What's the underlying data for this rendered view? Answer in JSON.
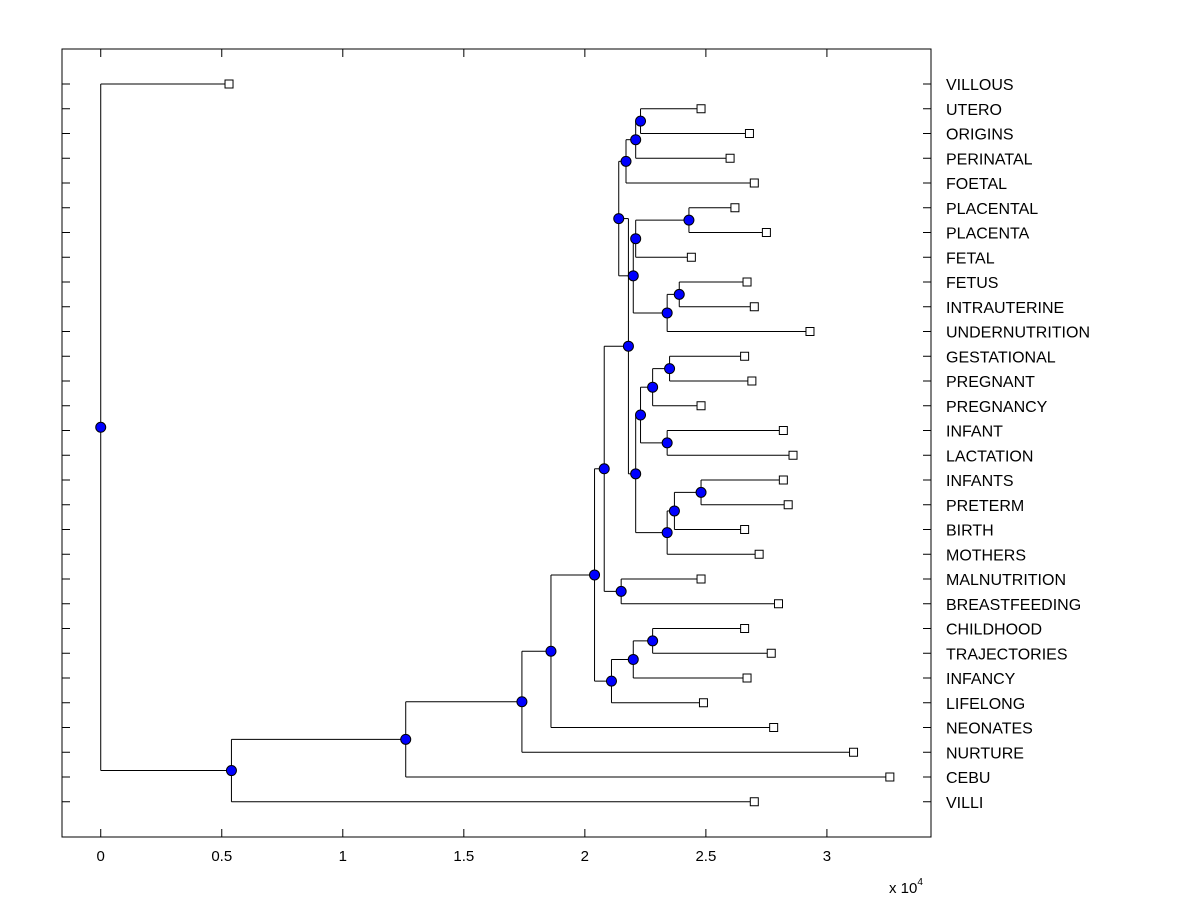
{
  "chart_data": {
    "type": "dendrogram",
    "orientation": "horizontal",
    "x_ticks": [
      0,
      0.5,
      1,
      1.5,
      2,
      2.5,
      3
    ],
    "x_tick_labels": [
      "0",
      "0.5",
      "1",
      "1.5",
      "2",
      "2.5",
      "3"
    ],
    "x_multiplier_label": "x 10",
    "x_multiplier_exponent": "4",
    "xlim": [
      -0.16,
      3.43
    ],
    "leaves": [
      {
        "label": "VILLOUS",
        "x": 0.53
      },
      {
        "label": "UTERO",
        "x": 2.48
      },
      {
        "label": "ORIGINS",
        "x": 2.68
      },
      {
        "label": "PERINATAL",
        "x": 2.6
      },
      {
        "label": "FOETAL",
        "x": 2.7
      },
      {
        "label": "PLACENTAL",
        "x": 2.62
      },
      {
        "label": "PLACENTA",
        "x": 2.75
      },
      {
        "label": "FETAL",
        "x": 2.44
      },
      {
        "label": "FETUS",
        "x": 2.67
      },
      {
        "label": "INTRAUTERINE",
        "x": 2.7
      },
      {
        "label": "UNDERNUTRITION",
        "x": 2.93
      },
      {
        "label": "GESTATIONAL",
        "x": 2.66
      },
      {
        "label": "PREGNANT",
        "x": 2.69
      },
      {
        "label": "PREGNANCY",
        "x": 2.48
      },
      {
        "label": "INFANT",
        "x": 2.82
      },
      {
        "label": "LACTATION",
        "x": 2.86
      },
      {
        "label": "INFANTS",
        "x": 2.82
      },
      {
        "label": "PRETERM",
        "x": 2.84
      },
      {
        "label": "BIRTH",
        "x": 2.66
      },
      {
        "label": "MOTHERS",
        "x": 2.72
      },
      {
        "label": "MALNUTRITION",
        "x": 2.48
      },
      {
        "label": "BREASTFEEDING",
        "x": 2.8
      },
      {
        "label": "CHILDHOOD",
        "x": 2.66
      },
      {
        "label": "TRAJECTORIES",
        "x": 2.77
      },
      {
        "label": "INFANCY",
        "x": 2.67
      },
      {
        "label": "LIFELONG",
        "x": 2.49
      },
      {
        "label": "NEONATES",
        "x": 2.78
      },
      {
        "label": "NURTURE",
        "x": 3.11
      },
      {
        "label": "CEBU",
        "x": 3.26
      },
      {
        "label": "VILLI",
        "x": 2.7
      }
    ],
    "merges": [
      {
        "id": "n1",
        "x": 2.23,
        "children": [
          "L1",
          "L2"
        ]
      },
      {
        "id": "n2",
        "x": 2.21,
        "children": [
          "n1",
          "L3"
        ]
      },
      {
        "id": "n3",
        "x": 2.17,
        "children": [
          "n2",
          "L4"
        ]
      },
      {
        "id": "n4",
        "x": 2.43,
        "children": [
          "L5",
          "L6"
        ]
      },
      {
        "id": "n5",
        "x": 2.21,
        "children": [
          "n4",
          "L7"
        ]
      },
      {
        "id": "n6",
        "x": 2.39,
        "children": [
          "L8",
          "L9"
        ]
      },
      {
        "id": "n7",
        "x": 2.34,
        "children": [
          "n6",
          "L10"
        ]
      },
      {
        "id": "n8",
        "x": 2.2,
        "children": [
          "n5",
          "n7"
        ]
      },
      {
        "id": "n9",
        "x": 2.14,
        "children": [
          "n3",
          "n8"
        ]
      },
      {
        "id": "n10",
        "x": 2.35,
        "children": [
          "L11",
          "L12"
        ]
      },
      {
        "id": "n11",
        "x": 2.28,
        "children": [
          "n10",
          "L13"
        ]
      },
      {
        "id": "n12",
        "x": 2.34,
        "children": [
          "L14",
          "L15"
        ]
      },
      {
        "id": "n13",
        "x": 2.23,
        "children": [
          "n11",
          "n12"
        ]
      },
      {
        "id": "n14",
        "x": 2.48,
        "children": [
          "L16",
          "L17"
        ]
      },
      {
        "id": "n15",
        "x": 2.37,
        "children": [
          "n14",
          "L18"
        ]
      },
      {
        "id": "n16",
        "x": 2.34,
        "children": [
          "n15",
          "L19"
        ]
      },
      {
        "id": "n17",
        "x": 2.21,
        "children": [
          "n13",
          "n16"
        ]
      },
      {
        "id": "n18",
        "x": 2.18,
        "children": [
          "n9",
          "n17"
        ]
      },
      {
        "id": "n19",
        "x": 2.15,
        "children": [
          "L20",
          "L21"
        ]
      },
      {
        "id": "n20",
        "x": 2.08,
        "children": [
          "n18",
          "n19"
        ]
      },
      {
        "id": "n21",
        "x": 2.28,
        "children": [
          "L22",
          "L23"
        ]
      },
      {
        "id": "n22",
        "x": 2.2,
        "children": [
          "n21",
          "L24"
        ]
      },
      {
        "id": "n23",
        "x": 2.11,
        "children": [
          "n22",
          "L25"
        ]
      },
      {
        "id": "n24",
        "x": 2.04,
        "children": [
          "n20",
          "n23"
        ]
      },
      {
        "id": "n25",
        "x": 1.86,
        "children": [
          "n24",
          "L26"
        ]
      },
      {
        "id": "n26",
        "x": 1.74,
        "children": [
          "n25",
          "L27"
        ]
      },
      {
        "id": "n27",
        "x": 1.26,
        "children": [
          "n26",
          "L28"
        ]
      },
      {
        "id": "n28",
        "x": 0.54,
        "children": [
          "n27",
          "L29"
        ]
      },
      {
        "id": "n29",
        "x": 0.0,
        "children": [
          "L0",
          "n28"
        ]
      }
    ],
    "leaf_marker_color": "#ffffff",
    "node_marker_color": "#0000ff",
    "line_color": "#000000"
  }
}
